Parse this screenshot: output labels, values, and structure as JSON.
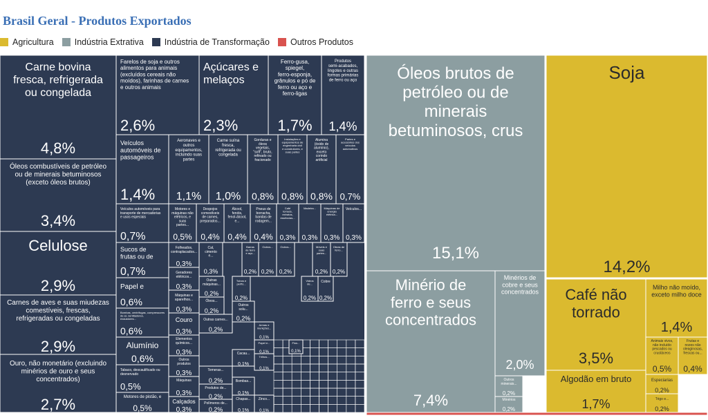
{
  "title": "Brasil Geral - Produtos Exportados",
  "legend": [
    {
      "label": "Agricultura",
      "color": "#dbba2f"
    },
    {
      "label": "Indústria Extrativa",
      "color": "#8c9ea1"
    },
    {
      "label": "Indústria de Transformação",
      "color": "#2d3a52"
    },
    {
      "label": "Outros Produtos",
      "color": "#d9534f"
    }
  ],
  "chart_data": {
    "type": "treemap",
    "title": "Brasil Geral - Produtos Exportados",
    "series": [
      {
        "name": "Agricultura",
        "color": "#dbba2f"
      },
      {
        "name": "Indústria Extrativa",
        "color": "#8c9ea1"
      },
      {
        "name": "Indústria de Transformação",
        "color": "#2d3a52"
      },
      {
        "name": "Outros Produtos",
        "color": "#d9534f"
      }
    ],
    "tiles": [
      {
        "id": "oleos-brutos",
        "sector": "Indústria Extrativa",
        "label": "Óleos brutos de petróleo ou de minerais betuminosos, crus",
        "value": "15,1%"
      },
      {
        "id": "soja",
        "sector": "Agricultura",
        "label": "Soja",
        "value": "14,2%"
      },
      {
        "id": "carne-bovina",
        "sector": "Indústria de Transformação",
        "label": "Carne bovina fresca, refrigerada ou congelada",
        "value": "4,8%"
      },
      {
        "id": "minerio-ferro",
        "sector": "Indústria Extrativa",
        "label": "Minério de ferro e seus concentrados",
        "value": "7,4%"
      },
      {
        "id": "cafe",
        "sector": "Agricultura",
        "label": "Café não torrado",
        "value": "3,5%"
      },
      {
        "id": "oleos-comb",
        "sector": "Indústria de Transformação",
        "label": "Óleos combustíveis de petróleo ou de minerais betuminosos (exceto óleos brutos)",
        "value": "3,4%"
      },
      {
        "id": "celulose",
        "sector": "Indústria de Transformação",
        "label": "Celulose",
        "value": "2,9%"
      },
      {
        "id": "carnes-aves",
        "sector": "Indústria de Transformação",
        "label": "Carnes de aves e suas miudezas comestíveis, frescas, refrigeradas ou congeladas",
        "value": "2,9%"
      },
      {
        "id": "ouro",
        "sector": "Indústria de Transformação",
        "label": "Ouro, não monetário (excluindo minérios de ouro e seus concentrados)",
        "value": "2,7%"
      },
      {
        "id": "farelos",
        "sector": "Indústria de Transformação",
        "label": "Farelos de soja e outros alimentos para animais (excluídos cereais não moídos), farinhas de carnes e outros animais",
        "value": "2,6%"
      },
      {
        "id": "acucares",
        "sector": "Indústria de Transformação",
        "label": "Açúcares e melaços",
        "value": "2,3%"
      },
      {
        "id": "minerios-cobre",
        "sector": "Indústria Extrativa",
        "label": "Minérios de cobre e seus concentrados",
        "value": "2,0%"
      },
      {
        "id": "ferro-gusa",
        "sector": "Indústria de Transformação",
        "label": "Ferro-gusa, spiegel, ferro-esponja, grânulos e pó de ferro ou aço e ferro-ligas",
        "value": "1,7%"
      },
      {
        "id": "algodao",
        "sector": "Agricultura",
        "label": "Algodão em bruto",
        "value": "1,7%"
      },
      {
        "id": "semi-acabados",
        "sector": "Indústria de Transformação",
        "label": "Produtos semi-acabados, lingotes e outras formas primárias de ferro ou aço",
        "value": "1,4%"
      },
      {
        "id": "veiculos-pass",
        "sector": "Indústria de Transformação",
        "label": "Veículos automóveis de passageiros",
        "value": "1,4%"
      },
      {
        "id": "milho",
        "sector": "Agricultura",
        "label": "Milho não moído, exceto milho doce",
        "value": "1,4%"
      },
      {
        "id": "aeronaves",
        "sector": "Indústria de Transformação",
        "label": "Aeronaves e outros equipamentos, incluindo suas partes",
        "value": "1,1%"
      },
      {
        "id": "carne-suina",
        "sector": "Indústria de Transformação",
        "label": "Carne suína fresca, refrigerada ou congelada",
        "value": "1,0%"
      },
      {
        "id": "gorduras",
        "sector": "Indústria de Transformação",
        "label": "Gorduras e óleos vegetais, \"soft\", bruto, refinado ou fracionado",
        "value": "0,8%"
      },
      {
        "id": "instalacoes",
        "sector": "Indústria de Transformação",
        "label": "Instalações e equipamentos de engenharia civil e construtores, e suas partes",
        "value": "0,8%"
      },
      {
        "id": "alumina",
        "sector": "Indústria de Transformação",
        "label": "Alumina (óxido de alumínio), exceto corindo artificial",
        "value": "0,8%"
      },
      {
        "id": "partes-veiculos",
        "sector": "Indústria de Transformação",
        "label": "Partes e acessórios dos veículos automotivos",
        "value": "0,7%"
      },
      {
        "id": "veiculos-carga",
        "sector": "Indústria de Transformação",
        "label": "Veículos automóveis para transporte de mercadorias e usos especiais",
        "value": "0,7%"
      },
      {
        "id": "sucos",
        "sector": "Indústria de Transformação",
        "label": "Sucos de frutas ou de vegetais",
        "value": "0,7%"
      },
      {
        "id": "papel",
        "sector": "Indústria de Transformação",
        "label": "Papel e cartão",
        "value": "0,6%"
      },
      {
        "id": "bombas",
        "sector": "Indústria de Transformação",
        "label": "Bombas, centrífugas, compressores de ar, ventiladores, exaustores...",
        "value": "0,6%"
      },
      {
        "id": "aluminio",
        "sector": "Indústria de Transformação",
        "label": "Alumínio",
        "value": "0,6%"
      },
      {
        "id": "animais-vivos",
        "sector": "Agricultura",
        "label": "Animais vivos, não incluído pescados ou crustáceos",
        "value": "0,5%"
      },
      {
        "id": "tabaco",
        "sector": "Indústria de Transformação",
        "label": "Tabaco, descaulificado ou desnervado",
        "value": "0,5%"
      },
      {
        "id": "motores-pistao",
        "sector": "Indústria de Transformação",
        "label": "Motores de pistão, e suas partes",
        "value": "0,5%"
      },
      {
        "id": "motores-eletricos",
        "sector": "Indústria de Transformação",
        "label": "Motores e máquinas não elétricos, e suas partes...",
        "value": "0,5%"
      },
      {
        "id": "frutas",
        "sector": "Agricultura",
        "label": "Frutas e nozes não oleaginosas, frescas ou...",
        "value": "0,4%"
      },
      {
        "id": "despojos",
        "sector": "Indústria de Transformação",
        "label": "Despojos comestíveis de carnes, preparados...",
        "value": "0,4%"
      },
      {
        "id": "alcool",
        "sector": "Indústria de Transformação",
        "label": "Álcool, fenóis, fenol-álcool, e...",
        "value": "0,4%"
      },
      {
        "id": "pneus",
        "sector": "Indústria de Transformação",
        "label": "Pneus de borracha, bandas de rodagem...",
        "value": "0,4%"
      },
      {
        "id": "cafe-torrado",
        "sector": "Indústria de Transformação",
        "label": "Café torrado, extratos, essências...",
        "value": "0,3%"
      },
      {
        "id": "madeira",
        "sector": "Indústria de Transformação",
        "label": "Madeira...",
        "value": "0,3%"
      },
      {
        "id": "maquinas-energia",
        "sector": "Indústria de Transformação",
        "label": "Máquinas de energia elétrica...",
        "value": "0,3%"
      },
      {
        "id": "veiculos-outros",
        "sector": "Indústria de Transformação",
        "label": "Veículos...",
        "value": "0,3%"
      },
      {
        "id": "folheados",
        "sector": "Indústria de Transformação",
        "label": "Folheados, contraplacados...",
        "value": "0,3%"
      },
      {
        "id": "geradores",
        "sector": "Indústria de Transformação",
        "label": "Geradores elétricos...",
        "value": "0,3%"
      },
      {
        "id": "maquinas-aparelhos",
        "sector": "Indústria de Transformação",
        "label": "Máquinas e aparelhos...",
        "value": "0,3%"
      },
      {
        "id": "couro",
        "sector": "Indústria de Transformação",
        "label": "Couro",
        "value": "0,3%"
      },
      {
        "id": "elementos-quimicos",
        "sector": "Indústria de Transformação",
        "label": "Elementos químicos...",
        "value": "0,3%"
      },
      {
        "id": "outros-prod-comest",
        "sector": "Indústria de Transformação",
        "label": "Outros produtos comestíveis e...",
        "value": "0,3%"
      },
      {
        "id": "maquinas-agricolas",
        "sector": "Indústria de Transformação",
        "label": "Máquinas agrícolas (com...",
        "value": "0,3%"
      },
      {
        "id": "calcados",
        "sector": "Indústria de Transformação",
        "label": "Calçados",
        "value": "0,3%"
      },
      {
        "id": "cal-cimento",
        "sector": "Indústria de Transformação",
        "label": "Cal, cimento e...",
        "value": "0,3%"
      },
      {
        "id": "outras-maquinas",
        "sector": "Indústria de Transformação",
        "label": "Outras máquinas...",
        "value": "0,2%"
      },
      {
        "id": "oleos-essenciais",
        "sector": "Indústria de Transformação",
        "label": "Óleos...",
        "value": "0,2%"
      },
      {
        "id": "outras-carnes",
        "sector": "Indústria de Transformação",
        "label": "Outras carnes...",
        "value": "0,2%"
      },
      {
        "id": "outros-sol",
        "sector": "Indústria de Transformação",
        "label": "Outros solu...",
        "value": "0,2%"
      },
      {
        "id": "tempero",
        "sector": "Indústria de Transformação",
        "label": "Temeras...",
        "value": "0,2%"
      },
      {
        "id": "produtos-de",
        "sector": "Indústria de Transformação",
        "label": "Produtos de...",
        "value": "0,2%"
      },
      {
        "id": "polimeros",
        "sector": "Indústria de Transformação",
        "label": "Polímeros de...",
        "value": "0,2%"
      },
      {
        "id": "barras",
        "sector": "Indústria de Transformação",
        "label": "Barras de ferro e aço...",
        "value": "0,2%"
      },
      {
        "id": "outros-1",
        "sector": "Indústria de Transformação",
        "label": "Outros...",
        "value": "0,2%"
      },
      {
        "id": "outros-2",
        "sector": "Indústria de Transformação",
        "label": "Outros...",
        "value": "0,2%"
      },
      {
        "id": "moveis",
        "sector": "Indústria de Transformação",
        "label": "Móveis e suas partes...",
        "value": "0,2%"
      },
      {
        "id": "obras",
        "sector": "Indústria de Transformação",
        "label": "Obras de ferro...",
        "value": "0,2%"
      },
      {
        "id": "tubos",
        "sector": "Indústria de Transformação",
        "label": "Tubos e perfis...",
        "value": "0,2%"
      },
      {
        "id": "vidros",
        "sector": "Indústria de Transformação",
        "label": "Vidros de...",
        "value": "0,2%"
      },
      {
        "id": "cobre",
        "sector": "Indústria de Transformação",
        "label": "Cobre",
        "value": "0,2%"
      },
      {
        "id": "outros-minerais",
        "sector": "Indústria Extrativa",
        "label": "Outros minerais...",
        "value": "0,2%"
      },
      {
        "id": "minerios-de",
        "sector": "Indústria Extrativa",
        "label": "Minérios de...",
        "value": "0,2%"
      },
      {
        "id": "especiarias",
        "sector": "Agricultura",
        "label": "Especiarias",
        "value": "0,2%"
      },
      {
        "id": "trigo",
        "sector": "Agricultura",
        "label": "Trigo e...",
        "value": "0,2%"
      },
      {
        "id": "armas",
        "sector": "Indústria de Transformação",
        "label": "Armas e munições...",
        "value": "0,1%"
      },
      {
        "id": "papel-outro",
        "sector": "Indústria de Transformação",
        "label": "Papel e...",
        "value": "0,1%"
      },
      {
        "id": "fios",
        "sector": "Indústria de Transformação",
        "label": "Fios...",
        "value": "0,1%"
      },
      {
        "id": "cacau",
        "sector": "Indústria de Transformação",
        "label": "Cacau...",
        "value": "0,1%"
      },
      {
        "id": "trilhos",
        "sector": "Indústria de Transformação",
        "label": "Trilhos...",
        "value": "0,1%"
      },
      {
        "id": "bombas-2",
        "sector": "Indústria de Transformação",
        "label": "Bombas...",
        "value": "0,1%"
      },
      {
        "id": "chapas",
        "sector": "Indústria de Transformação",
        "label": "Chapas...",
        "value": "0,1%"
      },
      {
        "id": "zinco",
        "sector": "Indústria de Transformação",
        "label": "Zinco...",
        "value": "0,1%"
      },
      {
        "id": "outros-prod-tiny",
        "sector": "Outros Produtos",
        "label": "",
        "value": ""
      }
    ]
  }
}
